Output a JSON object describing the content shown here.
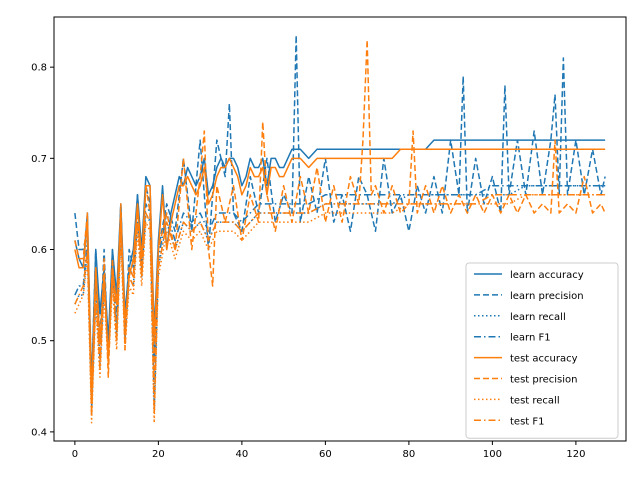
{
  "chart_data": {
    "type": "line",
    "xlim": [
      -5,
      132
    ],
    "ylim": [
      0.39,
      0.855
    ],
    "xticks": [
      0,
      20,
      40,
      60,
      80,
      100,
      120
    ],
    "yticks": [
      0.4,
      0.5,
      0.6,
      0.7,
      0.8
    ],
    "legend_placement": "lower-right",
    "grid": false,
    "series": [
      {
        "name": "learn accuracy",
        "color": "#1f77b4",
        "dash": "solid",
        "x": [
          0,
          1,
          2,
          3,
          4,
          5,
          6,
          7,
          8,
          9,
          10,
          11,
          12,
          13,
          14,
          15,
          16,
          17,
          18,
          19,
          20,
          21,
          22,
          23,
          24,
          25,
          26,
          27,
          28,
          29,
          30,
          31,
          32,
          33,
          34,
          35,
          36,
          37,
          38,
          39,
          40,
          41,
          42,
          43,
          44,
          45,
          46,
          47,
          48,
          49,
          50,
          52,
          54,
          56,
          58,
          60,
          62,
          64,
          66,
          68,
          70,
          72,
          74,
          76,
          78,
          80,
          82,
          84,
          86,
          88,
          90,
          92,
          94,
          96,
          98,
          100,
          102,
          104,
          106,
          108,
          110,
          112,
          114,
          116,
          118,
          120,
          122,
          124,
          126,
          127
        ],
        "y": [
          0.61,
          0.59,
          0.58,
          0.64,
          0.45,
          0.6,
          0.53,
          0.58,
          0.5,
          0.6,
          0.55,
          0.65,
          0.53,
          0.58,
          0.6,
          0.66,
          0.6,
          0.68,
          0.67,
          0.51,
          0.61,
          0.67,
          0.6,
          0.64,
          0.66,
          0.68,
          0.67,
          0.69,
          0.68,
          0.67,
          0.68,
          0.7,
          0.66,
          0.67,
          0.69,
          0.7,
          0.69,
          0.7,
          0.7,
          0.69,
          0.67,
          0.68,
          0.7,
          0.69,
          0.69,
          0.7,
          0.67,
          0.7,
          0.7,
          0.69,
          0.69,
          0.71,
          0.71,
          0.7,
          0.71,
          0.71,
          0.71,
          0.71,
          0.71,
          0.71,
          0.71,
          0.71,
          0.71,
          0.71,
          0.71,
          0.71,
          0.71,
          0.71,
          0.72,
          0.72,
          0.72,
          0.72,
          0.72,
          0.72,
          0.72,
          0.72,
          0.72,
          0.72,
          0.72,
          0.72,
          0.72,
          0.72,
          0.72,
          0.72,
          0.72,
          0.72,
          0.72,
          0.72,
          0.72,
          0.72
        ]
      },
      {
        "name": "learn precision",
        "color": "#1f77b4",
        "dash": "dashed",
        "x": [
          0,
          1,
          2,
          3,
          4,
          5,
          6,
          7,
          8,
          9,
          10,
          11,
          12,
          13,
          14,
          15,
          16,
          17,
          18,
          19,
          20,
          22,
          24,
          26,
          28,
          30,
          32,
          34,
          36,
          37,
          38,
          40,
          42,
          44,
          46,
          48,
          50,
          52,
          53,
          54,
          56,
          58,
          60,
          62,
          64,
          66,
          68,
          70,
          72,
          74,
          76,
          78,
          80,
          82,
          84,
          86,
          88,
          90,
          92,
          93,
          94,
          96,
          98,
          100,
          102,
          103,
          104,
          106,
          108,
          110,
          112,
          114,
          115,
          116,
          117,
          118,
          120,
          122,
          124,
          126,
          127
        ],
        "y": [
          0.64,
          0.6,
          0.6,
          0.62,
          0.45,
          0.6,
          0.5,
          0.6,
          0.48,
          0.6,
          0.52,
          0.65,
          0.5,
          0.6,
          0.58,
          0.66,
          0.58,
          0.67,
          0.65,
          0.48,
          0.6,
          0.65,
          0.62,
          0.7,
          0.62,
          0.72,
          0.6,
          0.72,
          0.68,
          0.76,
          0.64,
          0.62,
          0.68,
          0.64,
          0.7,
          0.63,
          0.66,
          0.64,
          0.835,
          0.63,
          0.68,
          0.64,
          0.7,
          0.63,
          0.66,
          0.62,
          0.68,
          0.66,
          0.62,
          0.7,
          0.64,
          0.66,
          0.62,
          0.67,
          0.64,
          0.68,
          0.64,
          0.72,
          0.66,
          0.79,
          0.64,
          0.7,
          0.65,
          0.68,
          0.64,
          0.78,
          0.66,
          0.72,
          0.66,
          0.73,
          0.66,
          0.72,
          0.77,
          0.66,
          0.81,
          0.66,
          0.72,
          0.66,
          0.71,
          0.66,
          0.68
        ]
      },
      {
        "name": "learn recall",
        "color": "#1f77b4",
        "dash": "dotted",
        "x": [
          0,
          1,
          2,
          3,
          4,
          5,
          6,
          7,
          8,
          9,
          10,
          11,
          12,
          13,
          14,
          15,
          16,
          17,
          18,
          19,
          20,
          22,
          24,
          26,
          28,
          30,
          32,
          34,
          36,
          38,
          40,
          44,
          48,
          52,
          56,
          60,
          64,
          68,
          72,
          76,
          80,
          84,
          88,
          92,
          96,
          100,
          104,
          108,
          112,
          116,
          120,
          124,
          127
        ],
        "y": [
          0.54,
          0.55,
          0.55,
          0.6,
          0.42,
          0.55,
          0.47,
          0.56,
          0.48,
          0.57,
          0.5,
          0.62,
          0.5,
          0.57,
          0.56,
          0.63,
          0.57,
          0.64,
          0.63,
          0.42,
          0.58,
          0.63,
          0.6,
          0.63,
          0.62,
          0.63,
          0.61,
          0.63,
          0.63,
          0.63,
          0.62,
          0.64,
          0.64,
          0.64,
          0.64,
          0.65,
          0.65,
          0.65,
          0.65,
          0.65,
          0.66,
          0.66,
          0.66,
          0.66,
          0.66,
          0.66,
          0.66,
          0.67,
          0.67,
          0.67,
          0.67,
          0.67,
          0.67
        ]
      },
      {
        "name": "learn F1",
        "color": "#1f77b4",
        "dash": "dashdot",
        "x": [
          0,
          1,
          2,
          3,
          4,
          5,
          6,
          7,
          8,
          9,
          10,
          11,
          12,
          13,
          14,
          15,
          16,
          17,
          18,
          19,
          20,
          22,
          24,
          26,
          28,
          30,
          32,
          34,
          36,
          38,
          40,
          44,
          48,
          52,
          56,
          60,
          64,
          68,
          72,
          76,
          80,
          84,
          88,
          92,
          96,
          100,
          104,
          108,
          112,
          116,
          120,
          124,
          127
        ],
        "y": [
          0.55,
          0.56,
          0.56,
          0.61,
          0.43,
          0.56,
          0.48,
          0.57,
          0.49,
          0.58,
          0.51,
          0.63,
          0.51,
          0.58,
          0.57,
          0.64,
          0.58,
          0.65,
          0.64,
          0.43,
          0.59,
          0.64,
          0.61,
          0.64,
          0.63,
          0.64,
          0.62,
          0.64,
          0.64,
          0.64,
          0.63,
          0.65,
          0.65,
          0.65,
          0.65,
          0.66,
          0.66,
          0.66,
          0.66,
          0.66,
          0.66,
          0.66,
          0.66,
          0.66,
          0.66,
          0.67,
          0.67,
          0.67,
          0.67,
          0.67,
          0.67,
          0.67,
          0.67
        ]
      },
      {
        "name": "test accuracy",
        "color": "#ff7f0e",
        "dash": "solid",
        "x": [
          0,
          1,
          2,
          3,
          4,
          5,
          6,
          7,
          8,
          9,
          10,
          11,
          12,
          13,
          14,
          15,
          16,
          17,
          18,
          19,
          20,
          21,
          22,
          23,
          24,
          25,
          26,
          27,
          28,
          29,
          30,
          31,
          32,
          33,
          34,
          35,
          36,
          37,
          38,
          39,
          40,
          41,
          42,
          43,
          44,
          45,
          46,
          47,
          48,
          49,
          50,
          52,
          54,
          56,
          58,
          60,
          62,
          64,
          66,
          68,
          70,
          72,
          74,
          76,
          78,
          80,
          82,
          84,
          86,
          88,
          90,
          92,
          94,
          96,
          98,
          100,
          102,
          104,
          106,
          108,
          110,
          112,
          114,
          116,
          118,
          120,
          122,
          124,
          126,
          127
        ],
        "y": [
          0.6,
          0.58,
          0.58,
          0.63,
          0.44,
          0.58,
          0.5,
          0.57,
          0.48,
          0.58,
          0.54,
          0.64,
          0.52,
          0.57,
          0.59,
          0.65,
          0.59,
          0.67,
          0.67,
          0.5,
          0.6,
          0.66,
          0.6,
          0.63,
          0.65,
          0.67,
          0.67,
          0.68,
          0.67,
          0.66,
          0.67,
          0.69,
          0.65,
          0.66,
          0.68,
          0.69,
          0.69,
          0.7,
          0.69,
          0.68,
          0.66,
          0.67,
          0.69,
          0.68,
          0.68,
          0.69,
          0.66,
          0.69,
          0.69,
          0.68,
          0.68,
          0.7,
          0.7,
          0.69,
          0.7,
          0.7,
          0.7,
          0.7,
          0.7,
          0.7,
          0.7,
          0.7,
          0.7,
          0.7,
          0.71,
          0.71,
          0.71,
          0.71,
          0.71,
          0.71,
          0.71,
          0.71,
          0.71,
          0.71,
          0.71,
          0.71,
          0.71,
          0.71,
          0.71,
          0.71,
          0.71,
          0.71,
          0.71,
          0.71,
          0.71,
          0.71,
          0.71,
          0.71,
          0.71,
          0.71
        ]
      },
      {
        "name": "test precision",
        "color": "#ff7f0e",
        "dash": "dashed",
        "x": [
          0,
          1,
          2,
          3,
          4,
          5,
          6,
          7,
          8,
          9,
          10,
          11,
          12,
          13,
          14,
          15,
          16,
          17,
          18,
          19,
          20,
          22,
          24,
          26,
          28,
          30,
          31,
          32,
          33,
          34,
          36,
          38,
          40,
          42,
          44,
          45,
          46,
          48,
          50,
          52,
          54,
          56,
          58,
          60,
          62,
          64,
          66,
          68,
          69,
          70,
          71,
          72,
          74,
          76,
          78,
          80,
          81,
          82,
          84,
          86,
          88,
          90,
          92,
          94,
          96,
          98,
          100,
          102,
          104,
          106,
          108,
          110,
          112,
          114,
          115,
          116,
          118,
          120,
          122,
          124,
          126,
          127
        ],
        "y": [
          0.61,
          0.59,
          0.59,
          0.64,
          0.42,
          0.58,
          0.48,
          0.59,
          0.46,
          0.59,
          0.5,
          0.65,
          0.49,
          0.58,
          0.57,
          0.65,
          0.57,
          0.67,
          0.64,
          0.46,
          0.6,
          0.64,
          0.6,
          0.7,
          0.6,
          0.68,
          0.73,
          0.6,
          0.56,
          0.67,
          0.63,
          0.67,
          0.61,
          0.66,
          0.63,
          0.74,
          0.66,
          0.62,
          0.67,
          0.63,
          0.68,
          0.64,
          0.69,
          0.63,
          0.67,
          0.63,
          0.68,
          0.65,
          0.72,
          0.83,
          0.66,
          0.67,
          0.64,
          0.67,
          0.64,
          0.65,
          0.73,
          0.64,
          0.67,
          0.64,
          0.67,
          0.64,
          0.66,
          0.64,
          0.66,
          0.64,
          0.66,
          0.64,
          0.66,
          0.64,
          0.66,
          0.64,
          0.65,
          0.64,
          0.72,
          0.64,
          0.65,
          0.64,
          0.68,
          0.64,
          0.65,
          0.64
        ]
      },
      {
        "name": "test recall",
        "color": "#ff7f0e",
        "dash": "dotted",
        "x": [
          0,
          1,
          2,
          3,
          4,
          5,
          6,
          7,
          8,
          9,
          10,
          11,
          12,
          13,
          14,
          15,
          16,
          17,
          18,
          19,
          20,
          22,
          24,
          26,
          28,
          30,
          32,
          34,
          36,
          38,
          40,
          44,
          48,
          52,
          56,
          60,
          64,
          68,
          72,
          76,
          80,
          84,
          88,
          92,
          96,
          100,
          104,
          108,
          112,
          116,
          120,
          124,
          127
        ],
        "y": [
          0.53,
          0.54,
          0.55,
          0.59,
          0.41,
          0.54,
          0.46,
          0.55,
          0.47,
          0.56,
          0.49,
          0.61,
          0.49,
          0.56,
          0.55,
          0.62,
          0.56,
          0.63,
          0.62,
          0.41,
          0.57,
          0.62,
          0.59,
          0.62,
          0.61,
          0.62,
          0.6,
          0.62,
          0.62,
          0.62,
          0.61,
          0.63,
          0.63,
          0.63,
          0.63,
          0.64,
          0.64,
          0.64,
          0.64,
          0.64,
          0.65,
          0.65,
          0.65,
          0.65,
          0.65,
          0.65,
          0.65,
          0.66,
          0.66,
          0.66,
          0.66,
          0.66,
          0.66
        ]
      },
      {
        "name": "test F1",
        "color": "#ff7f0e",
        "dash": "dashdot",
        "x": [
          0,
          1,
          2,
          3,
          4,
          5,
          6,
          7,
          8,
          9,
          10,
          11,
          12,
          13,
          14,
          15,
          16,
          17,
          18,
          19,
          20,
          22,
          24,
          26,
          28,
          30,
          32,
          34,
          36,
          38,
          40,
          44,
          48,
          52,
          56,
          60,
          64,
          68,
          72,
          76,
          80,
          84,
          88,
          92,
          96,
          100,
          104,
          108,
          112,
          116,
          120,
          124,
          127
        ],
        "y": [
          0.54,
          0.55,
          0.56,
          0.6,
          0.42,
          0.55,
          0.47,
          0.56,
          0.48,
          0.57,
          0.5,
          0.62,
          0.5,
          0.57,
          0.56,
          0.63,
          0.57,
          0.64,
          0.63,
          0.42,
          0.58,
          0.63,
          0.6,
          0.63,
          0.62,
          0.63,
          0.61,
          0.63,
          0.63,
          0.63,
          0.62,
          0.64,
          0.64,
          0.64,
          0.64,
          0.65,
          0.65,
          0.65,
          0.65,
          0.65,
          0.65,
          0.65,
          0.65,
          0.65,
          0.65,
          0.66,
          0.66,
          0.66,
          0.66,
          0.66,
          0.66,
          0.66,
          0.66
        ]
      }
    ]
  }
}
